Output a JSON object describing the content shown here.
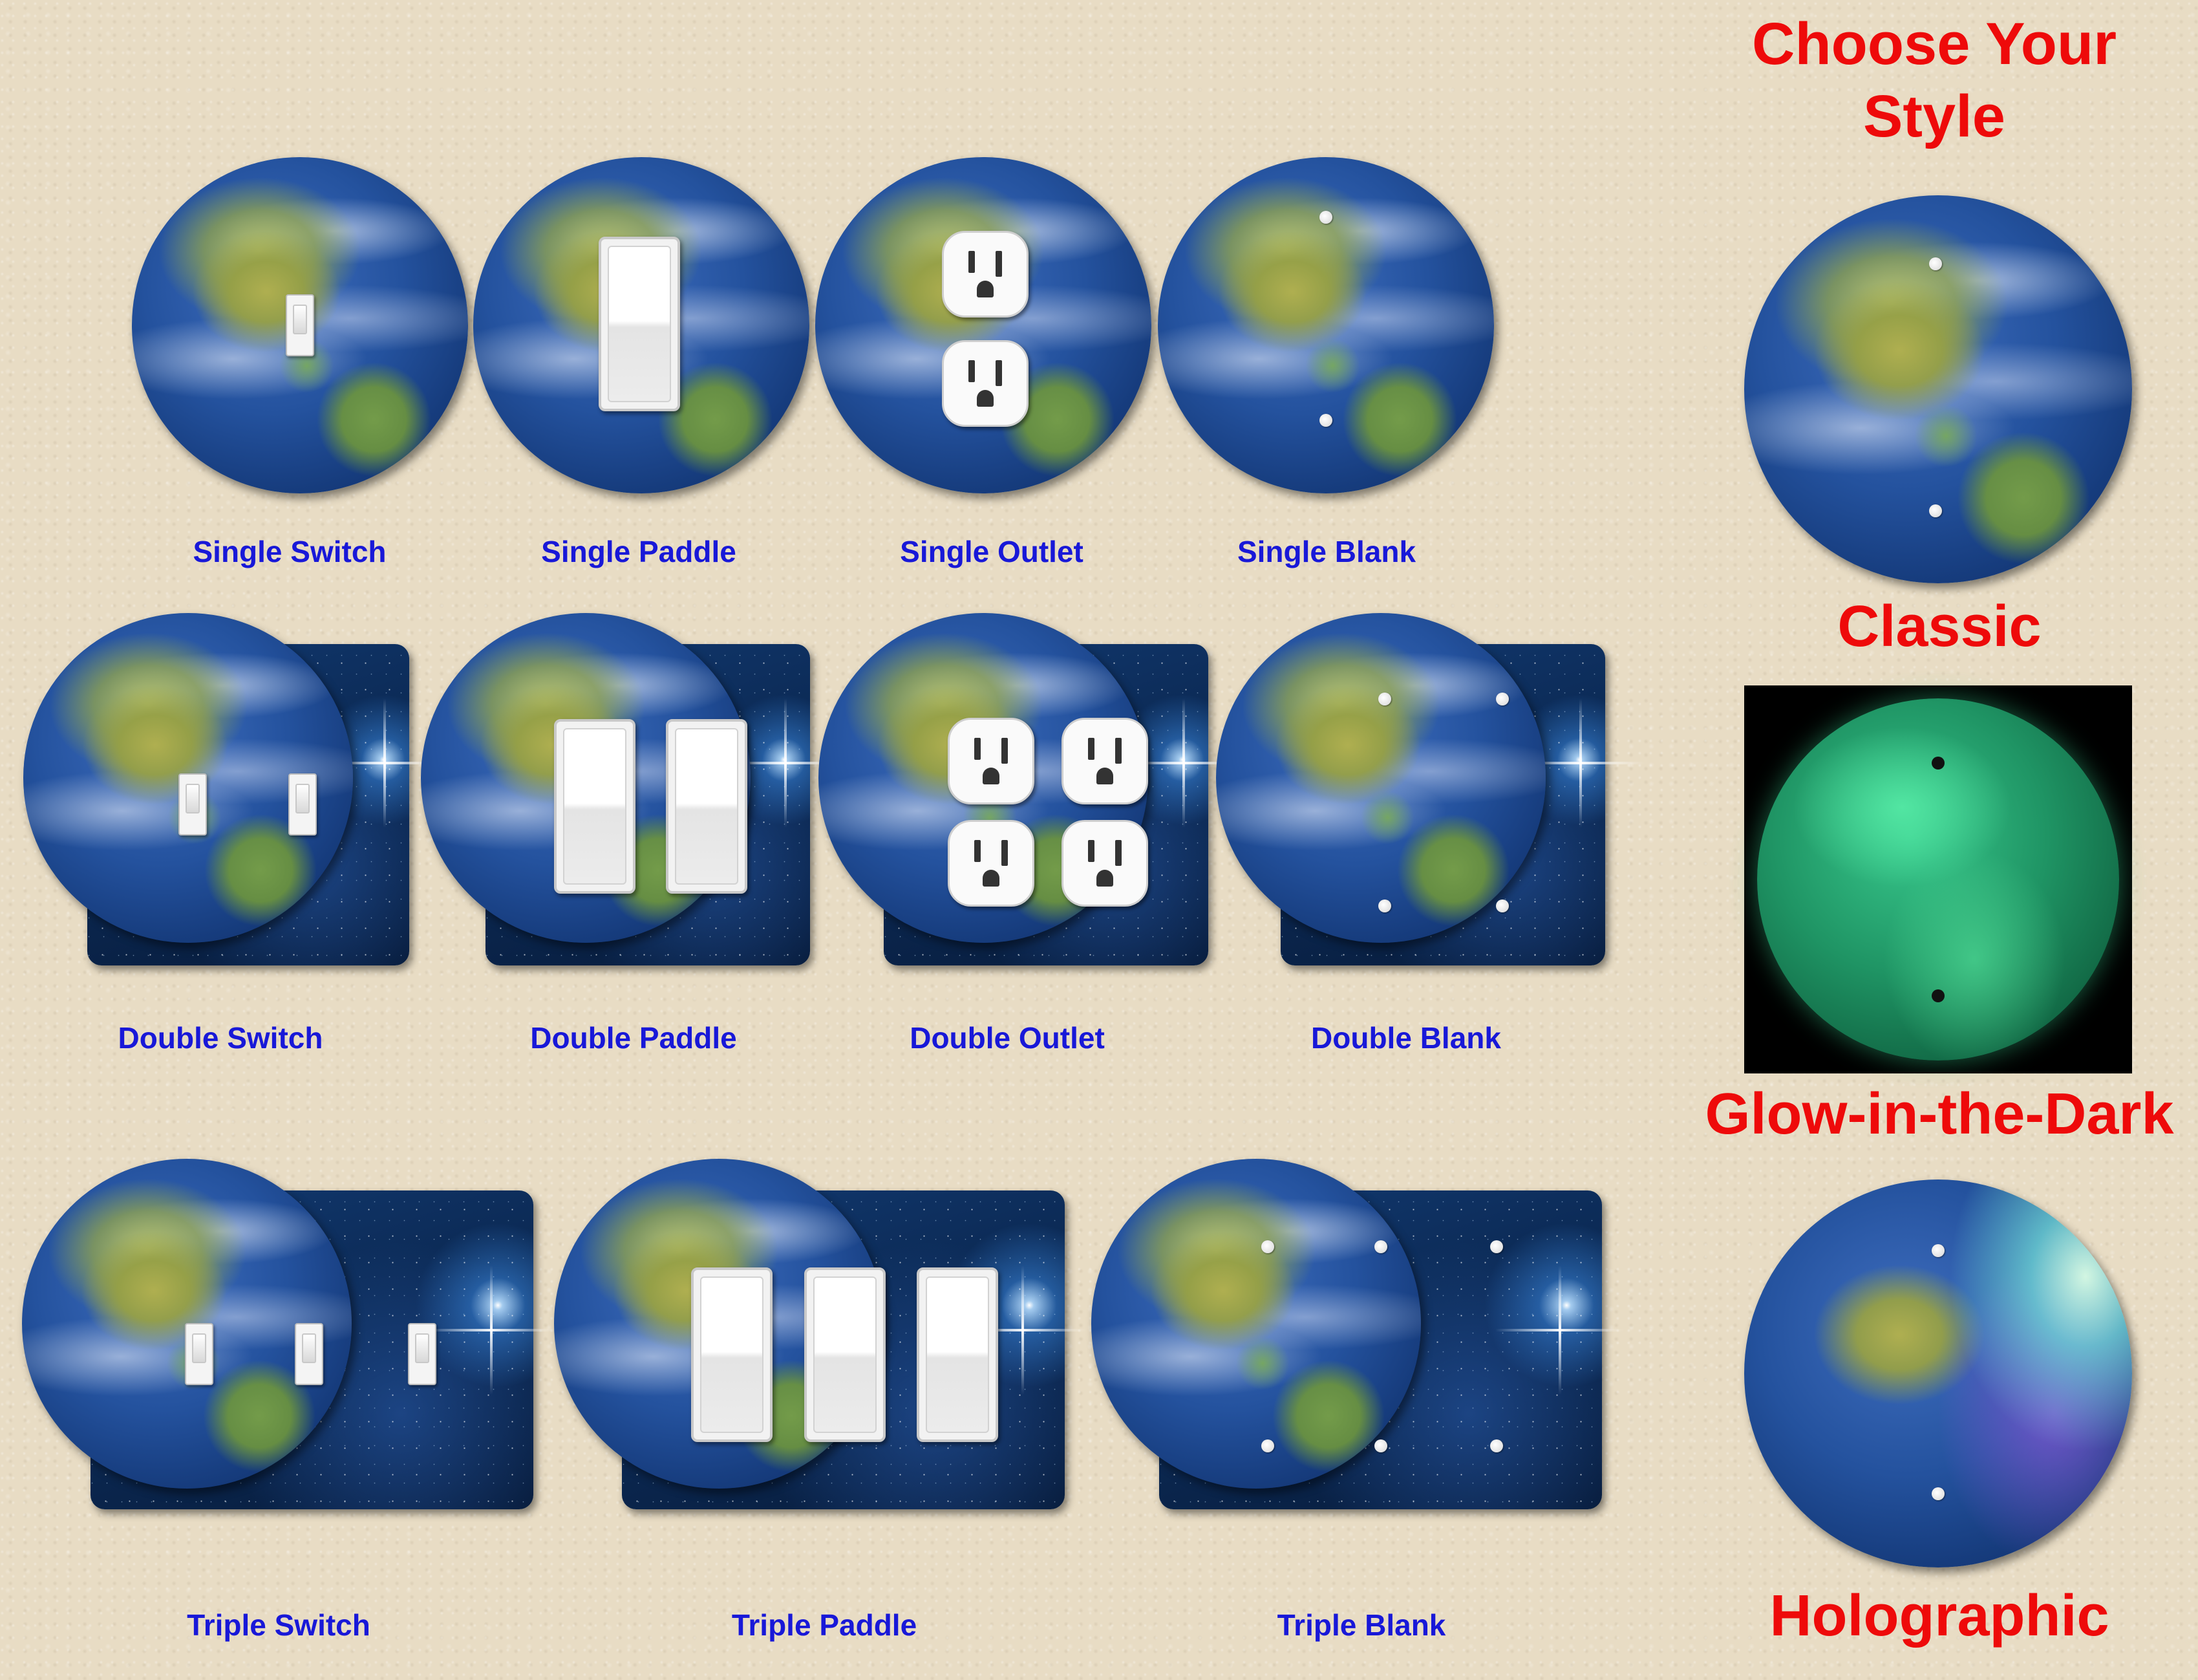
{
  "sidebar": {
    "heading": "Choose Your Style",
    "styles": [
      {
        "label": "Classic"
      },
      {
        "label": "Glow-in-the-Dark"
      },
      {
        "label": "Holographic"
      }
    ]
  },
  "products": {
    "single": [
      {
        "label": "Single Switch"
      },
      {
        "label": "Single Paddle"
      },
      {
        "label": "Single Outlet"
      },
      {
        "label": "Single Blank"
      }
    ],
    "double": [
      {
        "label": "Double Switch"
      },
      {
        "label": "Double Paddle"
      },
      {
        "label": "Double Outlet"
      },
      {
        "label": "Double Blank"
      }
    ],
    "triple": [
      {
        "label": "Triple Switch"
      },
      {
        "label": "Triple Paddle"
      },
      {
        "label": "Triple Blank"
      }
    ]
  },
  "colors": {
    "label_blue": "#1818d8",
    "heading_red": "#ee0a0a",
    "wall_beige": "#e8dcc4"
  }
}
